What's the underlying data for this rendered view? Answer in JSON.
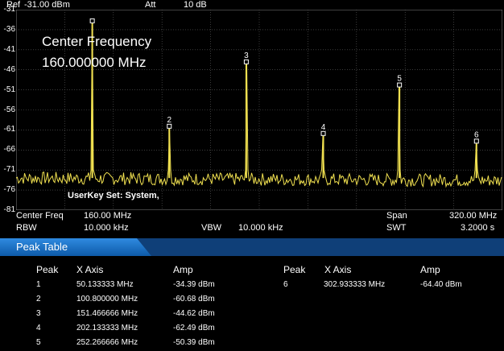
{
  "header": {
    "ref_label": "Ref",
    "ref_value": "-31.00 dBm",
    "att_label": "Att",
    "att_value": "10 dB"
  },
  "overlay": {
    "title_line1": "Center Frequency",
    "title_line2": "160.000000 MHz",
    "userkey": "UserKey Set:   System,"
  },
  "y_ticks": [
    "-31",
    "-36",
    "-41",
    "-46",
    "-51",
    "-56",
    "-61",
    "-66",
    "-71",
    "-76",
    "-81"
  ],
  "status": {
    "center_freq_label": "Center Freq",
    "center_freq_value": "160.00 MHz",
    "span_label": "Span",
    "span_value": "320.00 MHz",
    "rbw_label": "RBW",
    "rbw_value": "10.000 kHz",
    "vbw_label": "VBW",
    "vbw_value": "10.000 kHz",
    "swt_label": "SWT",
    "swt_value": "3.2000 s"
  },
  "peak_table": {
    "title": "Peak Table",
    "col_peak": "Peak",
    "col_x": "X Axis",
    "col_amp": "Amp",
    "rows": [
      {
        "peak": "1",
        "x": "50.133333 MHz",
        "amp": "-34.39 dBm"
      },
      {
        "peak": "2",
        "x": "100.800000 MHz",
        "amp": "-60.68 dBm"
      },
      {
        "peak": "3",
        "x": "151.466666 MHz",
        "amp": "-44.62 dBm"
      },
      {
        "peak": "4",
        "x": "202.133333 MHz",
        "amp": "-62.49 dBm"
      },
      {
        "peak": "5",
        "x": "252.266666 MHz",
        "amp": "-50.39 dBm"
      },
      {
        "peak": "6",
        "x": "302.933333 MHz",
        "amp": "-64.40 dBm"
      }
    ]
  },
  "colors": {
    "trace": "#f0e050",
    "grid": "#606060",
    "tab_blue": "#1f78c8"
  },
  "chart_data": {
    "type": "line",
    "x_range_mhz": [
      0,
      320
    ],
    "ylim": [
      -81,
      -31
    ],
    "y_unit": "dBm",
    "noise_floor_dbm": -73,
    "grid": true,
    "markers": [
      {
        "label": "1",
        "x_mhz": 50.133333,
        "amp_dbm": -34.39
      },
      {
        "label": "2",
        "x_mhz": 100.8,
        "amp_dbm": -60.68
      },
      {
        "label": "3",
        "x_mhz": 151.466666,
        "amp_dbm": -44.62
      },
      {
        "label": "4",
        "x_mhz": 202.133333,
        "amp_dbm": -62.49
      },
      {
        "label": "5",
        "x_mhz": 252.266666,
        "amp_dbm": -50.39
      },
      {
        "label": "6",
        "x_mhz": 302.933333,
        "amp_dbm": -64.4
      }
    ]
  }
}
